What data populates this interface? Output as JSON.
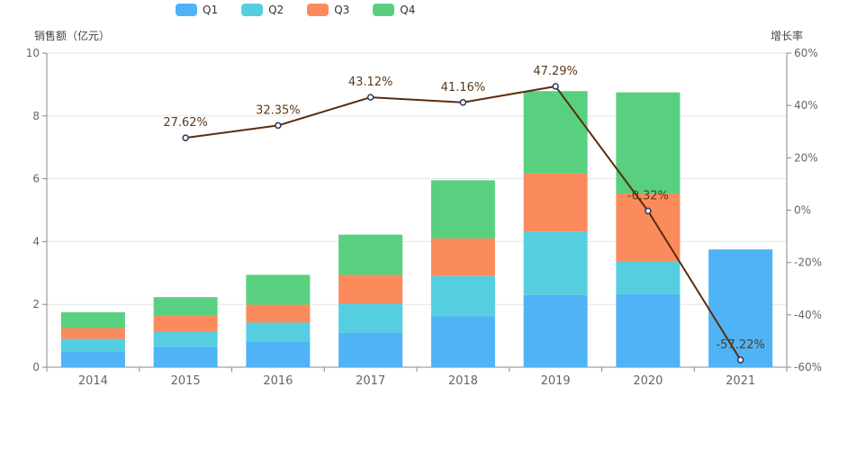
{
  "chart_data": {
    "type": "bar",
    "stacked": true,
    "categories": [
      "2014",
      "2015",
      "2016",
      "2017",
      "2018",
      "2019",
      "2020",
      "2021"
    ],
    "series": [
      {
        "name": "Q1",
        "color": "#4fb3f6",
        "values": [
          0.5,
          0.65,
          0.82,
          1.1,
          1.62,
          2.3,
          2.33,
          3.75
        ]
      },
      {
        "name": "Q2",
        "color": "#55cfe0",
        "values": [
          0.4,
          0.48,
          0.6,
          0.92,
          1.28,
          2.02,
          1.05,
          0
        ]
      },
      {
        "name": "Q3",
        "color": "#fb8a5c",
        "values": [
          0.35,
          0.5,
          0.57,
          0.92,
          1.2,
          1.85,
          2.15,
          0
        ]
      },
      {
        "name": "Q4",
        "color": "#58d080",
        "values": [
          0.5,
          0.6,
          0.95,
          1.28,
          1.85,
          2.62,
          3.22,
          0
        ]
      }
    ],
    "growth": {
      "name": "增长率",
      "color": "#5b2c0c",
      "values": [
        null,
        27.62,
        32.35,
        43.12,
        41.16,
        47.29,
        -0.32,
        -57.22
      ],
      "labels": [
        "",
        "27.62%",
        "32.35%",
        "43.12%",
        "41.16%",
        "47.29%",
        "-0.32%",
        "-57.22%"
      ]
    },
    "ylabel_left": "销售额（亿元）",
    "ylabel_right": "增长率",
    "ylim_left": [
      0,
      10
    ],
    "yticks_left": [
      "0",
      "2",
      "4",
      "6",
      "8",
      "10"
    ],
    "ylim_right": [
      -60,
      60
    ],
    "yticks_right": [
      "-60%",
      "-40%",
      "-20%",
      "0%",
      "20%",
      "40%",
      "60%"
    ],
    "legend_position": "top-left"
  }
}
